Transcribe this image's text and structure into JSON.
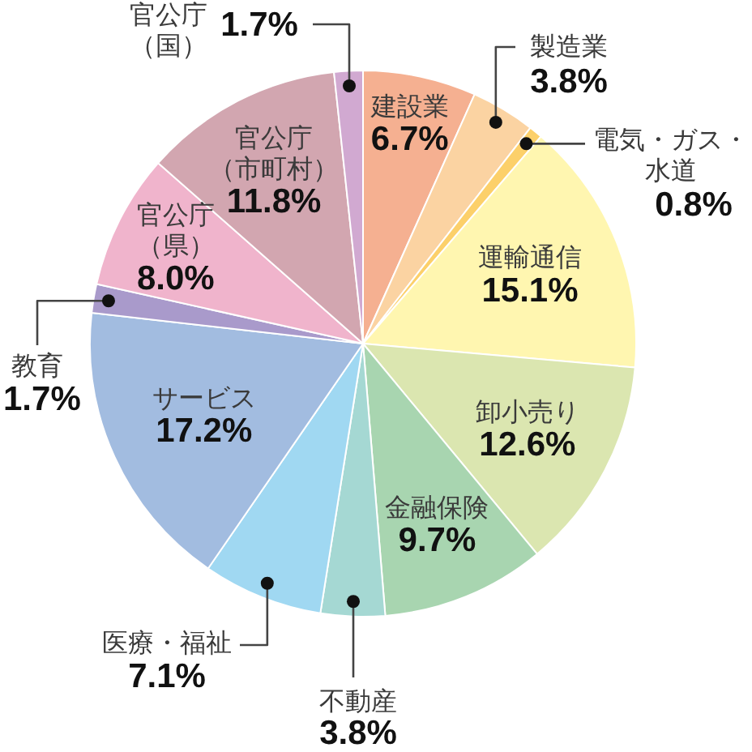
{
  "chart_data": {
    "type": "pie",
    "categories": [
      "建設業",
      "製造業",
      "電気・ガス・水道",
      "運輸通信",
      "卸小売り",
      "金融保険",
      "不動産",
      "医療・福祉",
      "サービス",
      "教育",
      "官公庁（県）",
      "官公庁（市町村）",
      "官公庁（国）"
    ],
    "values": [
      6.7,
      3.8,
      0.8,
      15.1,
      12.6,
      9.7,
      3.8,
      7.1,
      17.2,
      1.7,
      8.0,
      11.8,
      1.7
    ],
    "value_labels": [
      "6.7%",
      "3.8%",
      "0.8%",
      "15.1%",
      "12.6%",
      "9.7%",
      "3.8%",
      "7.1%",
      "17.2%",
      "1.7%",
      "8.0%",
      "11.8%",
      "1.7%"
    ],
    "colors": [
      "#f5b091",
      "#fbd3a2",
      "#fcd06a",
      "#fff6b0",
      "#dbe6b0",
      "#a8d5b0",
      "#a5d8d3",
      "#a0d8f2",
      "#a2bce0",
      "#a99acb",
      "#f0b4cc",
      "#d2a6b0",
      "#d1a9d1"
    ]
  }
}
